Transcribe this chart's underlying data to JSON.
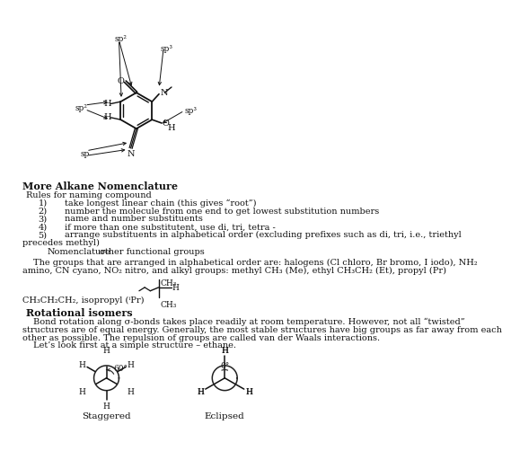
{
  "bg_color": "#ffffff",
  "text_color": "#111111",
  "section1_heading": "More Alkane Nomenclature",
  "rules_intro": "Rules for naming compound",
  "rules_nums": [
    "1)",
    "2)",
    "3)",
    "4)",
    "5)"
  ],
  "rules": [
    "take longest linear chain (this gives “root”)",
    "number the molecule from one end to get lowest substitution numbers",
    "name and number substituents",
    "if more than one substitutent, use di, tri, tetra -",
    "arrange substituents in alphabetical order (excluding prefixes such as di, tri, i.e., triethyl"
  ],
  "rule5_cont": "precedes methyl)",
  "nomenclature_line1": "Nomenclature",
  "nomenclature_line2": "other functional groups",
  "para1_line1": "The groups that are arranged in alphabetical order are: halogens (Cl chloro, Br bromo, I iodo), NH₂",
  "para1_line2": "amino, CN cyano, NO₂ nitro, and alkyl groups: methyl CH₃ (Me), ethyl CH₃CH₂ (Et), propyl (Pr)",
  "isopropyl_label": "CH₃CH₂CH₂, isopropyl (ⁱPr)",
  "section2_heading": "Rotational isomers",
  "para2_line1": "Bond rotation along σ-bonds takes place readily at room temperature. However, not all “twisted”",
  "para2_line2": "structures are of equal energy. Generally, the most stable structures have big groups as far away from each",
  "para2_line3": "other as possible. The repulsion of groups are called van der Waals interactions.",
  "para3": "Let’s look first at a simple structure – ethane.",
  "staggered_label": "Staggered",
  "eclipsed_label": "Eclipsed",
  "angle_60": "60°",
  "angle_0": "0°"
}
